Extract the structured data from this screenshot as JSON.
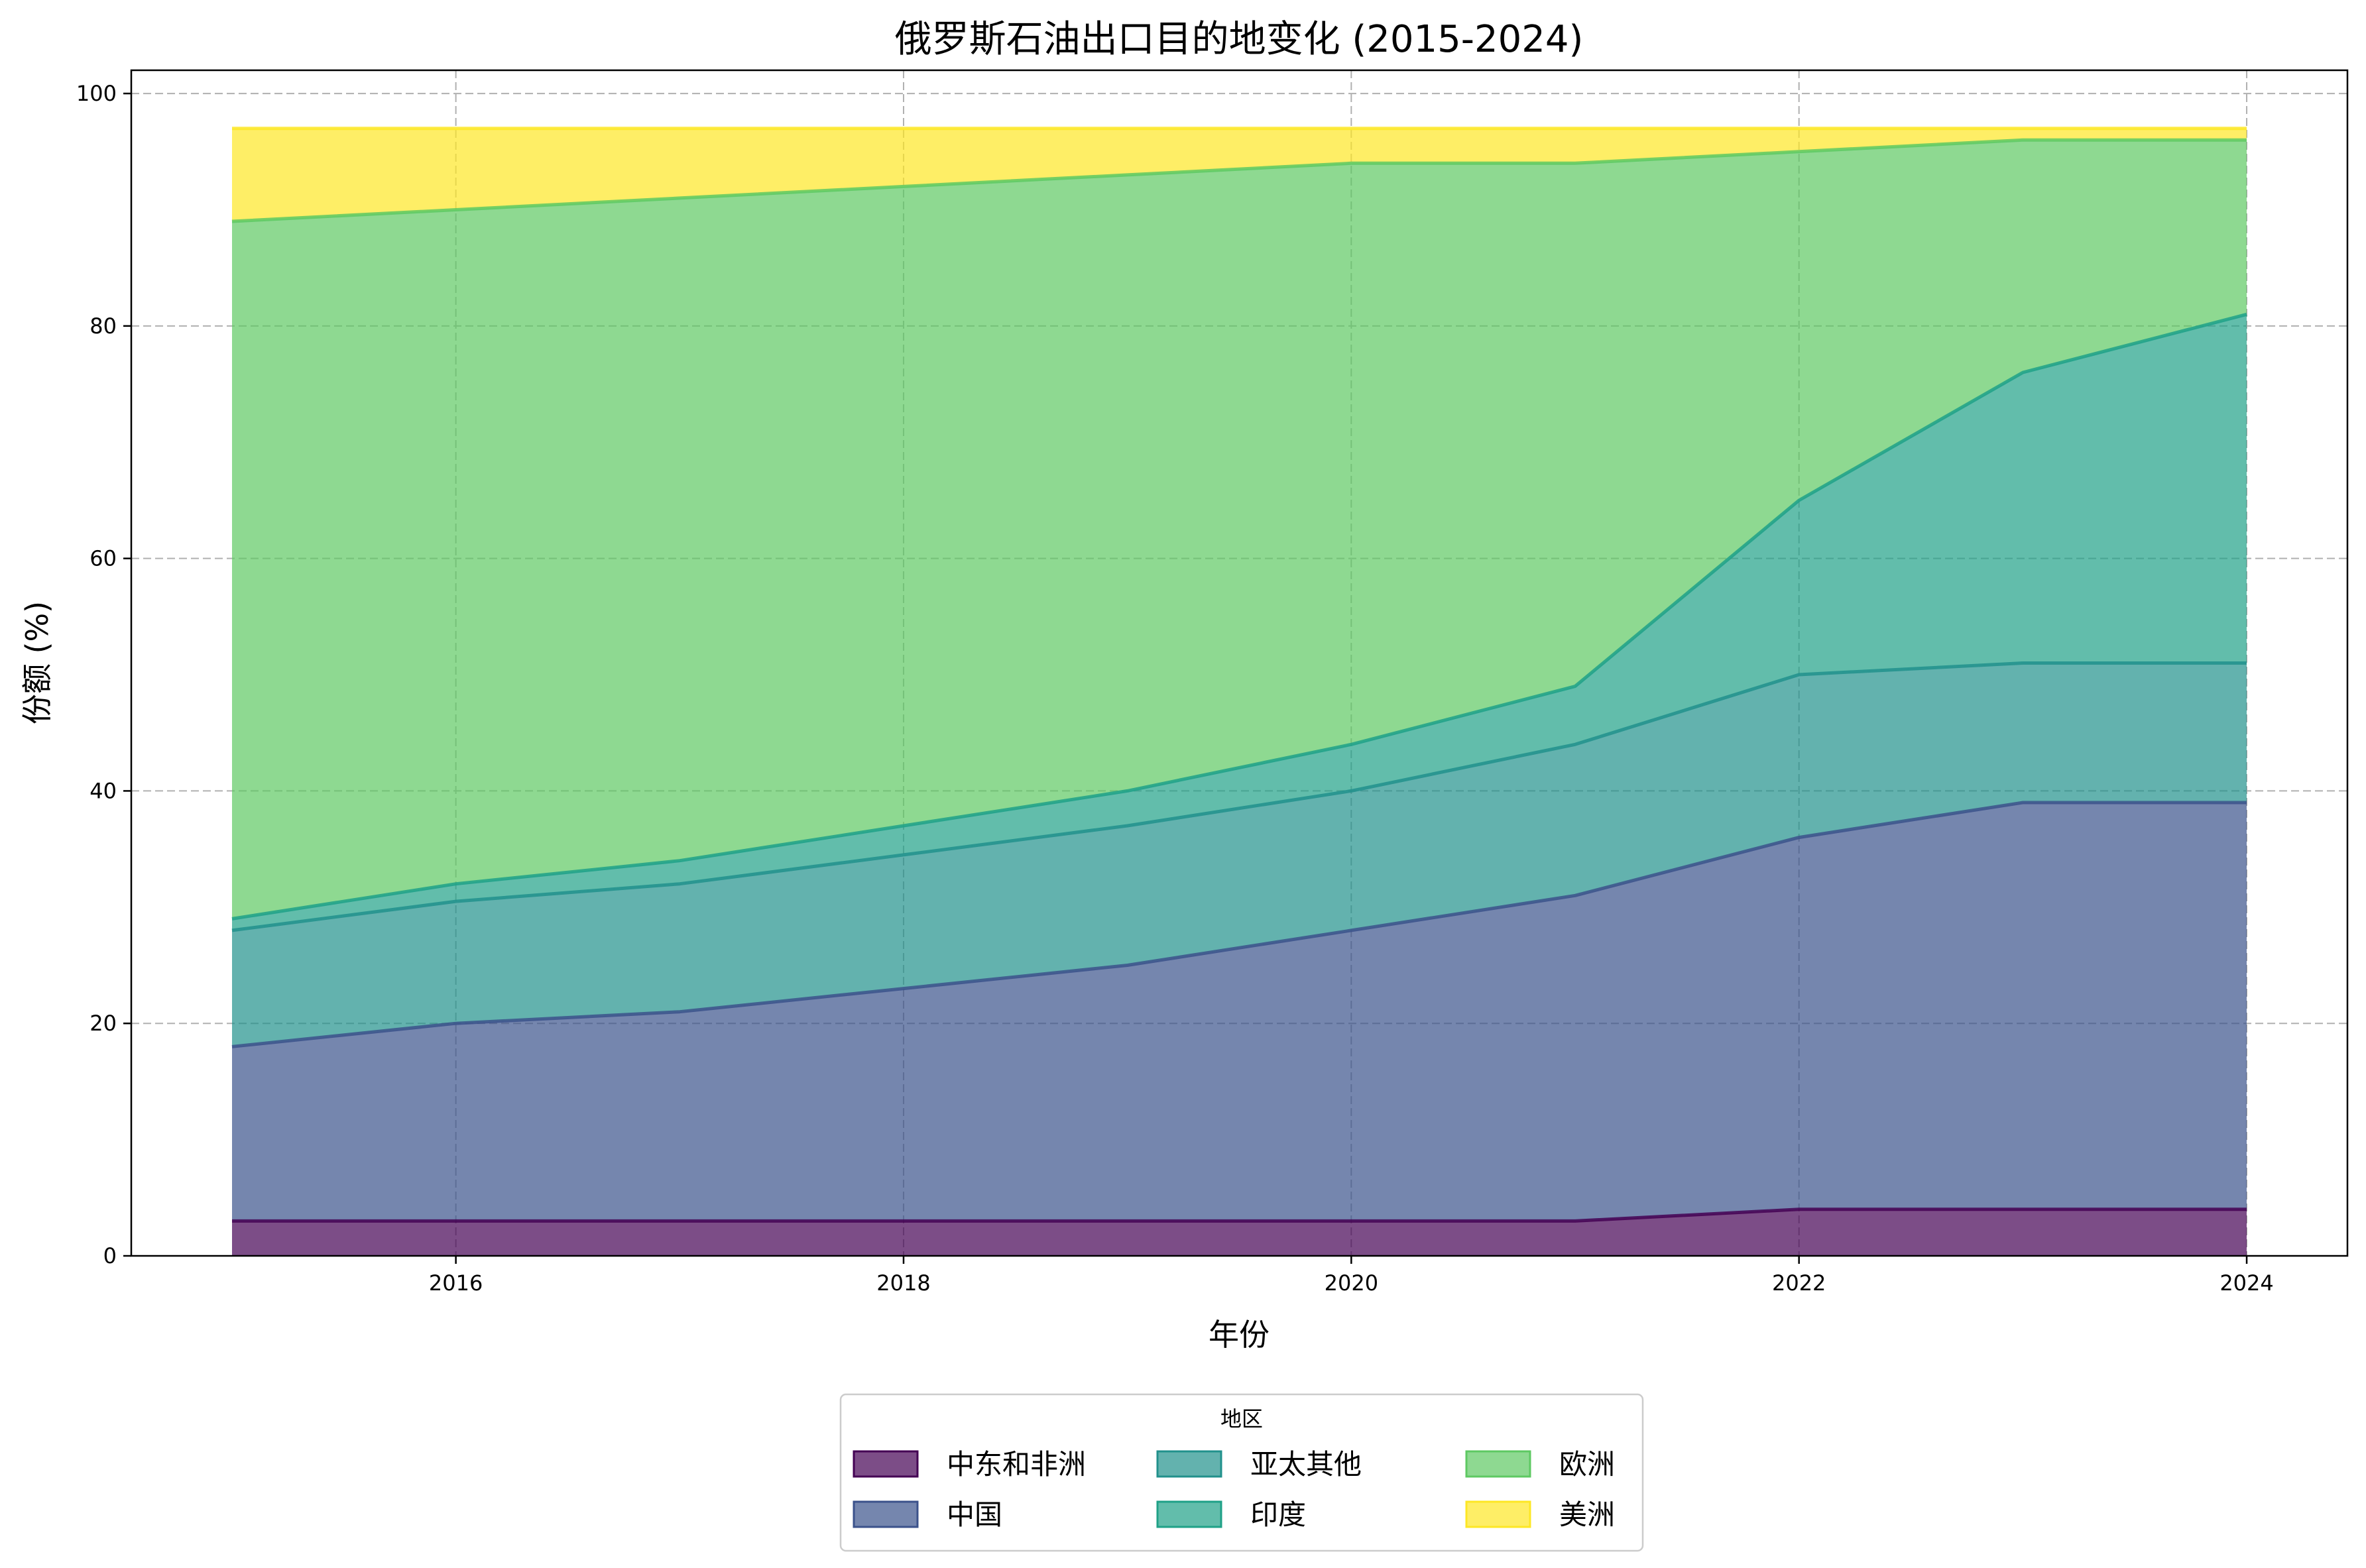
{
  "chart_data": {
    "type": "area",
    "stacked": true,
    "title": "俄罗斯石油出口目的地变化 (2015-2024)",
    "xlabel": "年份",
    "ylabel": "份额 (%)",
    "x": [
      2015,
      2016,
      2017,
      2018,
      2019,
      2020,
      2021,
      2022,
      2023,
      2024
    ],
    "xlim": [
      2014.55,
      2024.45
    ],
    "ylim": [
      0,
      102
    ],
    "xticks": [
      2016,
      2018,
      2020,
      2022,
      2024
    ],
    "yticks": [
      0,
      20,
      40,
      60,
      80,
      100
    ],
    "grid": true,
    "legend": {
      "title": "地区",
      "position": "bottom-center",
      "columns": 3
    },
    "series": [
      {
        "name": "中东和非洲",
        "color": "#440154",
        "values": [
          3,
          3,
          3,
          3,
          3,
          3,
          3,
          4,
          4,
          4
        ]
      },
      {
        "name": "中国",
        "color": "#3b528b",
        "values": [
          15,
          17,
          18,
          20,
          22,
          25,
          28,
          32,
          35,
          35
        ]
      },
      {
        "name": "亚太其他",
        "color": "#21918c",
        "values": [
          10,
          10.5,
          11,
          11.5,
          12,
          12,
          13,
          14,
          12,
          12
        ]
      },
      {
        "name": "印度",
        "color": "#1fa187",
        "values": [
          1,
          1.5,
          2,
          2.5,
          3,
          4,
          5,
          15,
          25,
          30
        ]
      },
      {
        "name": "欧洲",
        "color": "#5ec962",
        "values": [
          60,
          58,
          57,
          55,
          53,
          50,
          45,
          30,
          20,
          15
        ]
      },
      {
        "name": "美洲",
        "color": "#fde725",
        "values": [
          8,
          7,
          6,
          5,
          4,
          3,
          3,
          2,
          1,
          1
        ]
      }
    ]
  }
}
